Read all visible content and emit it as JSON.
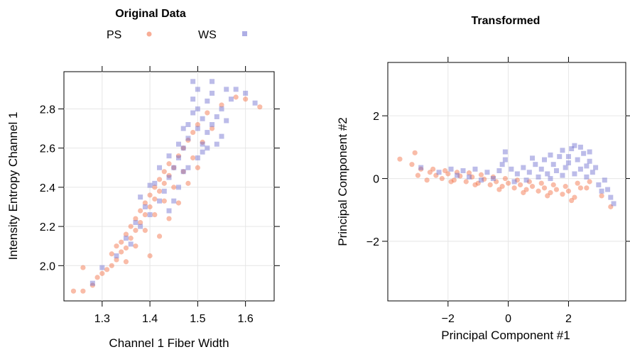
{
  "chart_data": [
    {
      "type": "scatter",
      "title": "Original Data",
      "xlabel": "Channel 1 Fiber Width",
      "ylabel": "Intensity Entropy Channel 1",
      "xlim": [
        1.22,
        1.66
      ],
      "ylim": [
        1.82,
        2.99
      ],
      "xticks": [
        1.3,
        1.4,
        1.5,
        1.6
      ],
      "xtick_labels": [
        "1.3",
        "1.4",
        "1.5",
        "1.6"
      ],
      "yticks": [
        2.0,
        2.2,
        2.4,
        2.6,
        2.8
      ],
      "ytick_labels": [
        "2.0",
        "2.2",
        "2.4",
        "2.6",
        "2.8"
      ],
      "grid": true,
      "legend": {
        "position": "top",
        "entries": [
          {
            "label": "PS",
            "color": "#F26A3F",
            "marker": "circle"
          },
          {
            "label": "WS",
            "color": "#6B6BCF",
            "marker": "square"
          }
        ]
      },
      "series": [
        {
          "name": "PS",
          "color": "#F26A3F",
          "marker": "circle",
          "points": [
            [
              1.24,
              1.87
            ],
            [
              1.26,
              1.87
            ],
            [
              1.26,
              1.99
            ],
            [
              1.28,
              1.9
            ],
            [
              1.29,
              1.94
            ],
            [
              1.3,
              1.96
            ],
            [
              1.31,
              1.98
            ],
            [
              1.32,
              2.0
            ],
            [
              1.32,
              2.06
            ],
            [
              1.33,
              2.03
            ],
            [
              1.33,
              2.1
            ],
            [
              1.34,
              2.07
            ],
            [
              1.34,
              2.12
            ],
            [
              1.35,
              2.09
            ],
            [
              1.35,
              2.16
            ],
            [
              1.36,
              2.14
            ],
            [
              1.36,
              2.2
            ],
            [
              1.37,
              2.18
            ],
            [
              1.37,
              2.24
            ],
            [
              1.38,
              2.22
            ],
            [
              1.38,
              2.28
            ],
            [
              1.39,
              2.26
            ],
            [
              1.39,
              2.32
            ],
            [
              1.4,
              2.3
            ],
            [
              1.4,
              2.36
            ],
            [
              1.41,
              2.34
            ],
            [
              1.41,
              2.4
            ],
            [
              1.42,
              2.38
            ],
            [
              1.42,
              2.44
            ],
            [
              1.43,
              2.42
            ],
            [
              1.43,
              2.48
            ],
            [
              1.44,
              2.46
            ],
            [
              1.44,
              2.52
            ],
            [
              1.45,
              2.5
            ],
            [
              1.46,
              2.56
            ],
            [
              1.47,
              2.6
            ],
            [
              1.48,
              2.64
            ],
            [
              1.49,
              2.68
            ],
            [
              1.5,
              2.72
            ],
            [
              1.52,
              2.78
            ],
            [
              1.55,
              2.82
            ],
            [
              1.58,
              2.86
            ],
            [
              1.6,
              2.85
            ],
            [
              1.63,
              2.81
            ],
            [
              1.35,
              2.02
            ],
            [
              1.37,
              2.1
            ],
            [
              1.39,
              2.18
            ],
            [
              1.41,
              2.26
            ],
            [
              1.43,
              2.33
            ],
            [
              1.45,
              2.4
            ],
            [
              1.47,
              2.48
            ],
            [
              1.49,
              2.55
            ],
            [
              1.51,
              2.63
            ],
            [
              1.53,
              2.7
            ],
            [
              1.4,
              2.05
            ],
            [
              1.42,
              2.15
            ],
            [
              1.44,
              2.24
            ],
            [
              1.46,
              2.32
            ],
            [
              1.48,
              2.42
            ],
            [
              1.5,
              2.5
            ]
          ]
        },
        {
          "name": "WS",
          "color": "#6B6BCF",
          "marker": "square",
          "points": [
            [
              1.28,
              1.91
            ],
            [
              1.3,
              1.99
            ],
            [
              1.33,
              2.05
            ],
            [
              1.36,
              2.11
            ],
            [
              1.38,
              2.2
            ],
            [
              1.4,
              2.26
            ],
            [
              1.42,
              2.33
            ],
            [
              1.43,
              2.38
            ],
            [
              1.44,
              2.45
            ],
            [
              1.45,
              2.5
            ],
            [
              1.46,
              2.55
            ],
            [
              1.47,
              2.6
            ],
            [
              1.48,
              2.65
            ],
            [
              1.48,
              2.72
            ],
            [
              1.49,
              2.78
            ],
            [
              1.49,
              2.85
            ],
            [
              1.5,
              2.7
            ],
            [
              1.5,
              2.8
            ],
            [
              1.5,
              2.9
            ],
            [
              1.51,
              2.62
            ],
            [
              1.51,
              2.75
            ],
            [
              1.52,
              2.68
            ],
            [
              1.52,
              2.84
            ],
            [
              1.53,
              2.72
            ],
            [
              1.53,
              2.88
            ],
            [
              1.54,
              2.76
            ],
            [
              1.55,
              2.66
            ],
            [
              1.55,
              2.8
            ],
            [
              1.56,
              2.74
            ],
            [
              1.57,
              2.85
            ],
            [
              1.58,
              2.9
            ],
            [
              1.6,
              2.88
            ],
            [
              1.62,
              2.83
            ],
            [
              1.47,
              2.48
            ],
            [
              1.46,
              2.4
            ],
            [
              1.45,
              2.33
            ],
            [
              1.44,
              2.28
            ],
            [
              1.46,
              2.62
            ],
            [
              1.47,
              2.7
            ],
            [
              1.44,
              2.56
            ],
            [
              1.42,
              2.5
            ],
            [
              1.41,
              2.42
            ],
            [
              1.39,
              2.3
            ],
            [
              1.37,
              2.22
            ],
            [
              1.35,
              2.14
            ],
            [
              1.5,
              2.55
            ],
            [
              1.52,
              2.6
            ],
            [
              1.54,
              2.62
            ],
            [
              1.49,
              2.94
            ],
            [
              1.53,
              2.94
            ],
            [
              1.56,
              2.9
            ],
            [
              1.51,
              2.58
            ],
            [
              1.48,
              2.5
            ],
            [
              1.4,
              2.41
            ],
            [
              1.38,
              2.35
            ]
          ]
        }
      ]
    },
    {
      "type": "scatter",
      "title": "Transformed",
      "xlabel": "Principal Component #1",
      "ylabel": "Principal Component #2",
      "xlim": [
        -4.0,
        3.9
      ],
      "ylim": [
        -3.9,
        3.7
      ],
      "xticks": [
        -2,
        0,
        2
      ],
      "xtick_labels": [
        "−2",
        "0",
        "2"
      ],
      "yticks": [
        -2,
        0,
        2
      ],
      "ytick_labels": [
        "−2",
        "0",
        "2"
      ],
      "grid": true,
      "series": [
        {
          "name": "PS",
          "color": "#F26A3F",
          "marker": "circle",
          "points": [
            [
              -3.6,
              0.62
            ],
            [
              -3.1,
              0.82
            ],
            [
              -3.2,
              0.45
            ],
            [
              -2.9,
              0.3
            ],
            [
              -2.6,
              0.2
            ],
            [
              -2.4,
              0.1
            ],
            [
              -2.2,
              0.0
            ],
            [
              -2.0,
              0.15
            ],
            [
              -1.8,
              -0.05
            ],
            [
              -1.6,
              0.08
            ],
            [
              -1.4,
              -0.1
            ],
            [
              -1.2,
              0.05
            ],
            [
              -1.0,
              -0.15
            ],
            [
              -0.8,
              -0.02
            ],
            [
              -0.6,
              -0.2
            ],
            [
              -0.4,
              -0.1
            ],
            [
              -0.2,
              -0.25
            ],
            [
              0.0,
              -0.15
            ],
            [
              0.2,
              -0.3
            ],
            [
              0.4,
              -0.2
            ],
            [
              0.6,
              -0.35
            ],
            [
              0.8,
              -0.25
            ],
            [
              1.0,
              -0.4
            ],
            [
              1.2,
              -0.3
            ],
            [
              1.4,
              -0.45
            ],
            [
              1.6,
              -0.35
            ],
            [
              1.8,
              -0.5
            ],
            [
              2.0,
              -0.4
            ],
            [
              2.2,
              -0.6
            ],
            [
              2.4,
              -0.3
            ],
            [
              -2.5,
              0.3
            ],
            [
              -2.1,
              0.25
            ],
            [
              -1.7,
              0.2
            ],
            [
              -1.3,
              0.18
            ],
            [
              -0.9,
              0.12
            ],
            [
              -0.5,
              0.05
            ],
            [
              -0.1,
              0.0
            ],
            [
              0.3,
              -0.05
            ],
            [
              0.7,
              -0.1
            ],
            [
              1.1,
              -0.15
            ],
            [
              1.5,
              -0.2
            ],
            [
              1.9,
              -0.25
            ],
            [
              2.3,
              -0.15
            ],
            [
              2.7,
              -0.1
            ],
            [
              3.1,
              -0.55
            ],
            [
              3.4,
              -0.9
            ],
            [
              -3.0,
              0.1
            ],
            [
              -2.7,
              -0.05
            ],
            [
              -1.9,
              -0.1
            ],
            [
              -1.1,
              -0.2
            ],
            [
              -0.3,
              -0.35
            ],
            [
              0.5,
              -0.45
            ],
            [
              1.3,
              -0.55
            ],
            [
              2.1,
              -0.7
            ],
            [
              2.6,
              -0.3
            ]
          ]
        },
        {
          "name": "WS",
          "color": "#6B6BCF",
          "marker": "square",
          "points": [
            [
              -2.9,
              0.35
            ],
            [
              -2.3,
              0.2
            ],
            [
              -1.9,
              0.3
            ],
            [
              -1.5,
              0.25
            ],
            [
              -1.1,
              0.3
            ],
            [
              -0.7,
              0.2
            ],
            [
              -0.3,
              0.25
            ],
            [
              -0.2,
              0.45
            ],
            [
              -0.1,
              0.6
            ],
            [
              -0.1,
              0.85
            ],
            [
              0.1,
              0.3
            ],
            [
              0.3,
              0.15
            ],
            [
              0.5,
              0.35
            ],
            [
              0.7,
              0.2
            ],
            [
              0.9,
              0.45
            ],
            [
              1.1,
              0.3
            ],
            [
              1.2,
              0.6
            ],
            [
              1.3,
              0.15
            ],
            [
              1.5,
              0.45
            ],
            [
              1.6,
              0.25
            ],
            [
              1.7,
              0.7
            ],
            [
              1.8,
              0.9
            ],
            [
              1.9,
              0.35
            ],
            [
              2.0,
              0.5
            ],
            [
              2.1,
              0.95
            ],
            [
              2.2,
              1.05
            ],
            [
              2.3,
              0.6
            ],
            [
              2.4,
              0.3
            ],
            [
              2.5,
              0.8
            ],
            [
              2.6,
              0.4
            ],
            [
              2.7,
              0.55
            ],
            [
              2.8,
              0.2
            ],
            [
              2.9,
              0.35
            ],
            [
              3.0,
              -0.2
            ],
            [
              3.1,
              -0.4
            ],
            [
              3.2,
              -0.05
            ],
            [
              3.3,
              -0.35
            ],
            [
              3.4,
              -0.6
            ],
            [
              3.5,
              -0.8
            ],
            [
              0.2,
              -0.1
            ],
            [
              0.6,
              -0.05
            ],
            [
              1.0,
              0.05
            ],
            [
              1.4,
              0.0
            ],
            [
              1.8,
              0.1
            ],
            [
              2.2,
              0.15
            ],
            [
              2.6,
              0.05
            ],
            [
              -0.5,
              0.0
            ],
            [
              -0.9,
              -0.05
            ],
            [
              -1.3,
              0.05
            ],
            [
              -1.7,
              0.1
            ],
            [
              0.8,
              0.65
            ],
            [
              1.4,
              0.75
            ],
            [
              2.0,
              0.7
            ],
            [
              2.4,
              1.0
            ],
            [
              2.7,
              0.85
            ]
          ]
        }
      ]
    }
  ]
}
